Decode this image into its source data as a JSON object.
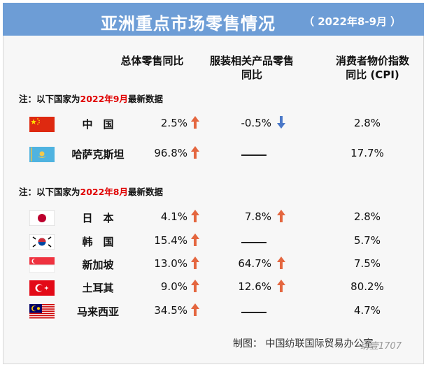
{
  "header": {
    "title": "亚洲重点市场零售情况",
    "period": "（ 2022年8-9月 ）"
  },
  "columns": {
    "total": "总体零售同比",
    "apparel_line1": "服装相关产品零售",
    "apparel_line2": "同比",
    "cpi_line1": "消费者物价指数",
    "cpi_line2": "同比 (CPI)"
  },
  "notes": {
    "prefix": "注：以下国家为",
    "sep_month": "2022年9月",
    "aug_month": "2022年8月",
    "suffix": "最新数据"
  },
  "colors": {
    "banner": "#6d9dd6",
    "up": "#e4663f",
    "down": "#4a78c8",
    "highlight": "#e00000"
  },
  "rows": [
    {
      "name": "中　国",
      "total": "2.5%",
      "total_trend": "up",
      "apparel": "-0.5%",
      "apparel_trend": "down",
      "cpi": "2.8%"
    },
    {
      "name": "哈萨克斯坦",
      "total": "96.8%",
      "total_trend": "up",
      "apparel": "——",
      "cpi": "17.7%"
    },
    {
      "name": "日　本",
      "total": "4.1%",
      "total_trend": "up",
      "apparel": "7.8%",
      "apparel_trend": "up",
      "cpi": "2.8%"
    },
    {
      "name": "韩　国",
      "total": "15.4%",
      "total_trend": "up",
      "apparel": "——",
      "cpi": "5.7%"
    },
    {
      "name": "新加坡",
      "total": "13.0%",
      "total_trend": "up",
      "apparel": "64.7%",
      "apparel_trend": "up",
      "cpi": "7.5%"
    },
    {
      "name": "土耳其",
      "total": "9.0%",
      "total_trend": "up",
      "apparel": "12.6%",
      "apparel_trend": "up",
      "cpi": "80.2%"
    },
    {
      "name": "马来西亚",
      "total": "34.5%",
      "total_trend": "up",
      "apparel": "——",
      "cpi": "4.7%"
    }
  ],
  "footer": {
    "credit": "制图：  中国纺联国际贸易办公室",
    "watermark": "纺壹1707"
  }
}
